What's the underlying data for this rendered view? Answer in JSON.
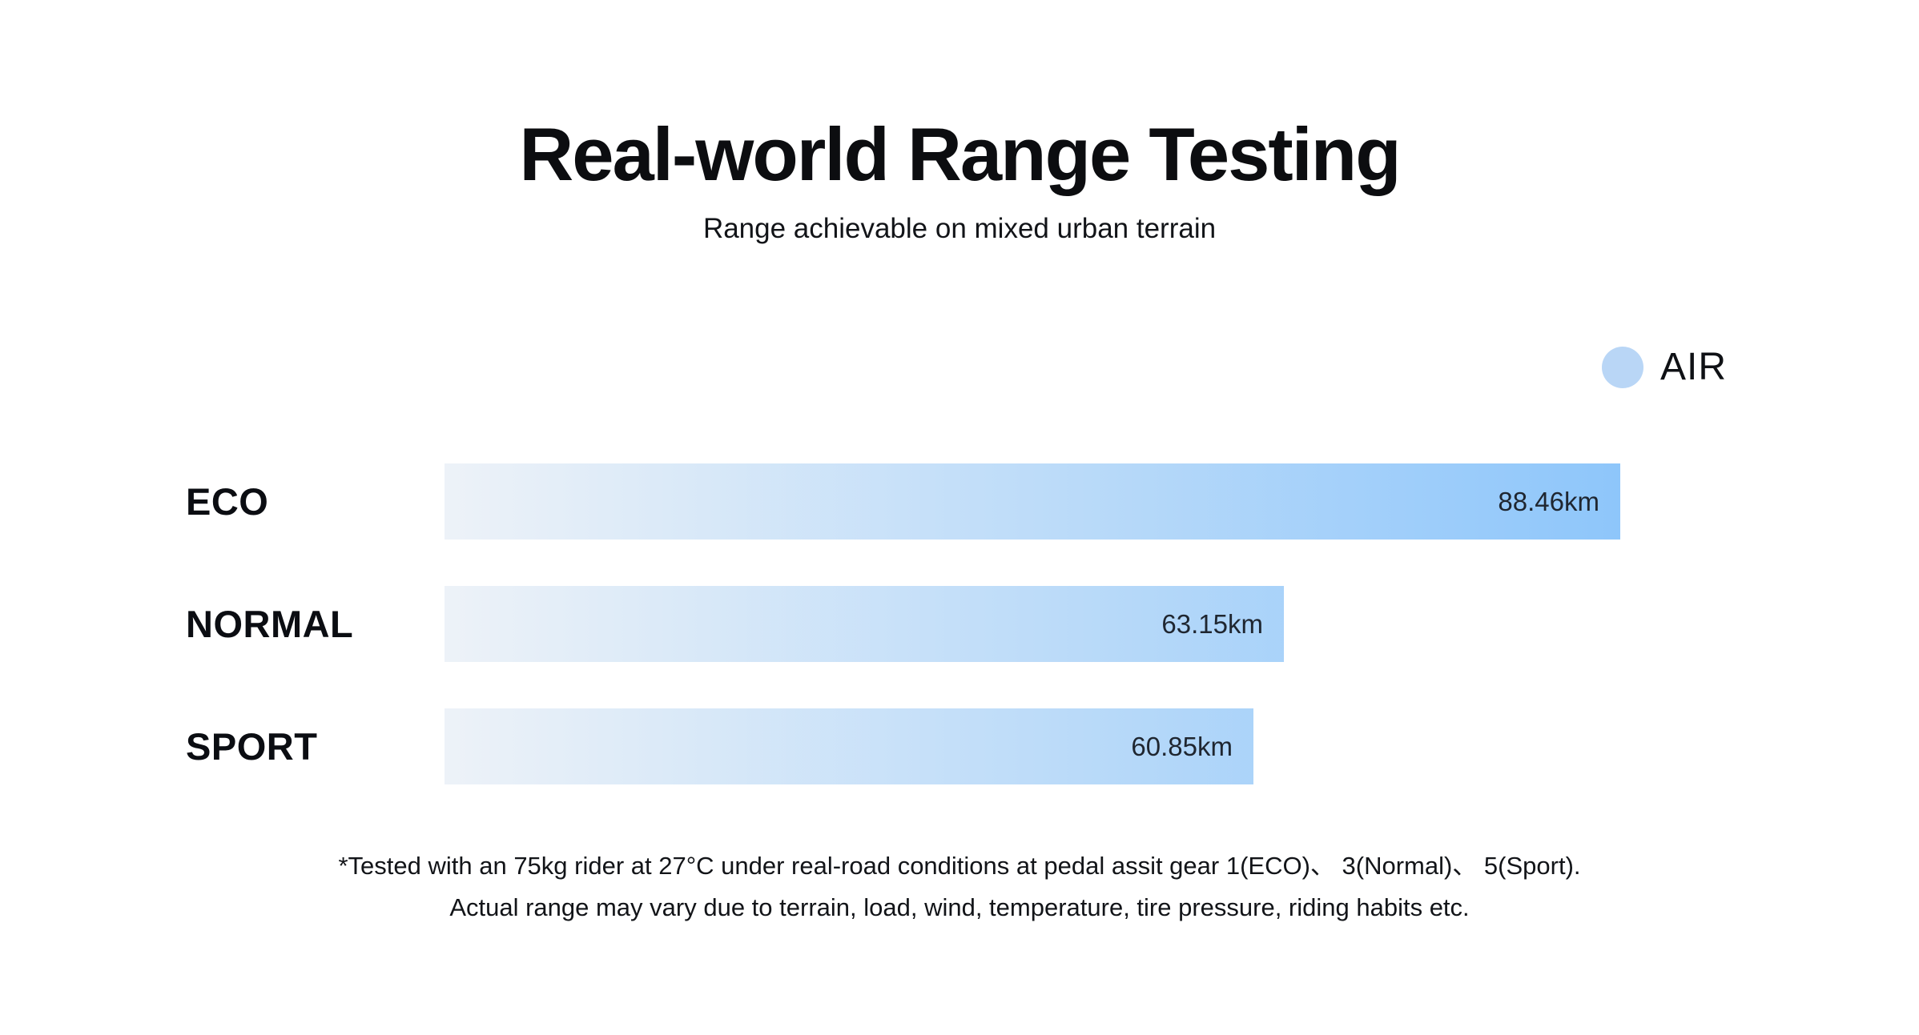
{
  "page": {
    "title": "Real-world Range Testing",
    "subtitle": "Range achievable on mixed urban terrain",
    "background_color": "#ffffff"
  },
  "legend": {
    "label": "AIR",
    "dot_color": "#b9d6f6"
  },
  "chart_data": {
    "type": "bar",
    "orientation": "horizontal",
    "title": "Real-world Range Testing",
    "subtitle": "Range achievable on mixed urban terrain",
    "categories": [
      "ECO",
      "NORMAL",
      "SPORT"
    ],
    "series": [
      {
        "name": "AIR",
        "values": [
          88.46,
          63.15,
          60.85
        ]
      }
    ],
    "value_labels": [
      "88.46km",
      "63.15km",
      "60.85km"
    ],
    "unit": "km",
    "xlim": [
      0,
      88.46
    ],
    "axes_visible": false,
    "grid": false,
    "legend_position": "top-right",
    "bar_gradient": {
      "start": "#edf2f8",
      "end": "#8ec6fa"
    },
    "value_label_position": "inside-right"
  },
  "footnote": {
    "line1": "*Tested with an 75kg rider at 27°C under real-road conditions at pedal assit gear 1(ECO)、 3(Normal)、 5(Sport).",
    "line2": "Actual range may vary due to terrain, load, wind, temperature, tire pressure, riding habits etc."
  }
}
